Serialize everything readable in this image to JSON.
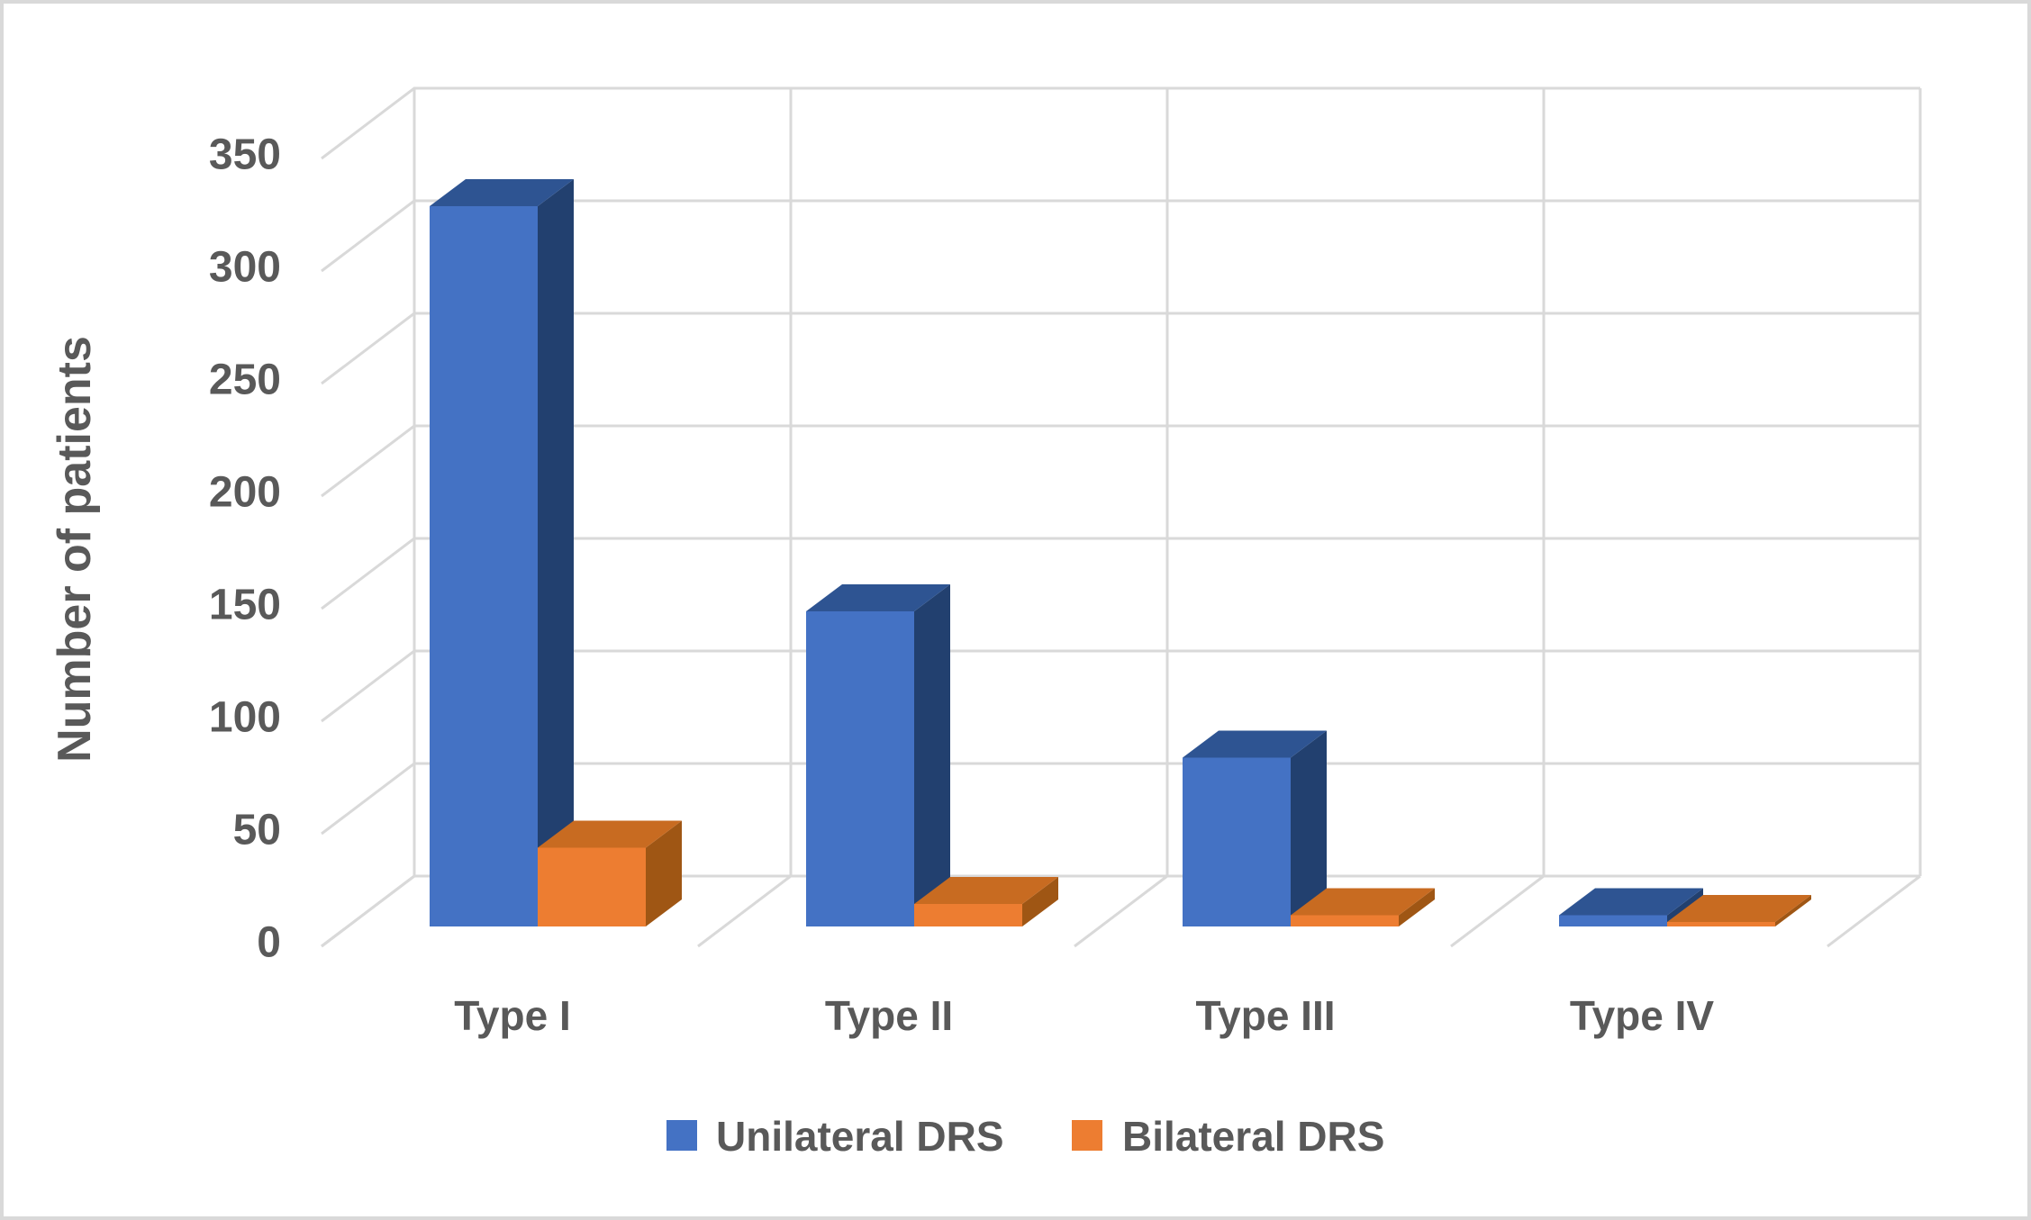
{
  "chart_data": {
    "type": "bar",
    "projection": "3d-clustered-column",
    "title": "",
    "categories": [
      "Type I",
      "Type II",
      "Type III",
      "Type IV"
    ],
    "series": [
      {
        "name": "Unilateral DRS",
        "values": [
          320,
          140,
          75,
          5
        ],
        "color": "#4472C4",
        "top_color": "#2E5492",
        "side_color": "#22406F"
      },
      {
        "name": "Bilateral DRS",
        "values": [
          35,
          10,
          5,
          2
        ],
        "color": "#ED7D31",
        "top_color": "#C86B21",
        "side_color": "#9F5614"
      }
    ],
    "xlabel": "",
    "ylabel": "Number of patients",
    "ylim": [
      0,
      350
    ],
    "y_ticks": [
      0,
      50,
      100,
      150,
      200,
      250,
      300,
      350
    ],
    "grid": true,
    "legend_position": "bottom",
    "gridline_color": "#D9D9D9",
    "text_color": "#595959",
    "background_color": "#FFFFFF",
    "border_color": "#D9D9D9"
  }
}
